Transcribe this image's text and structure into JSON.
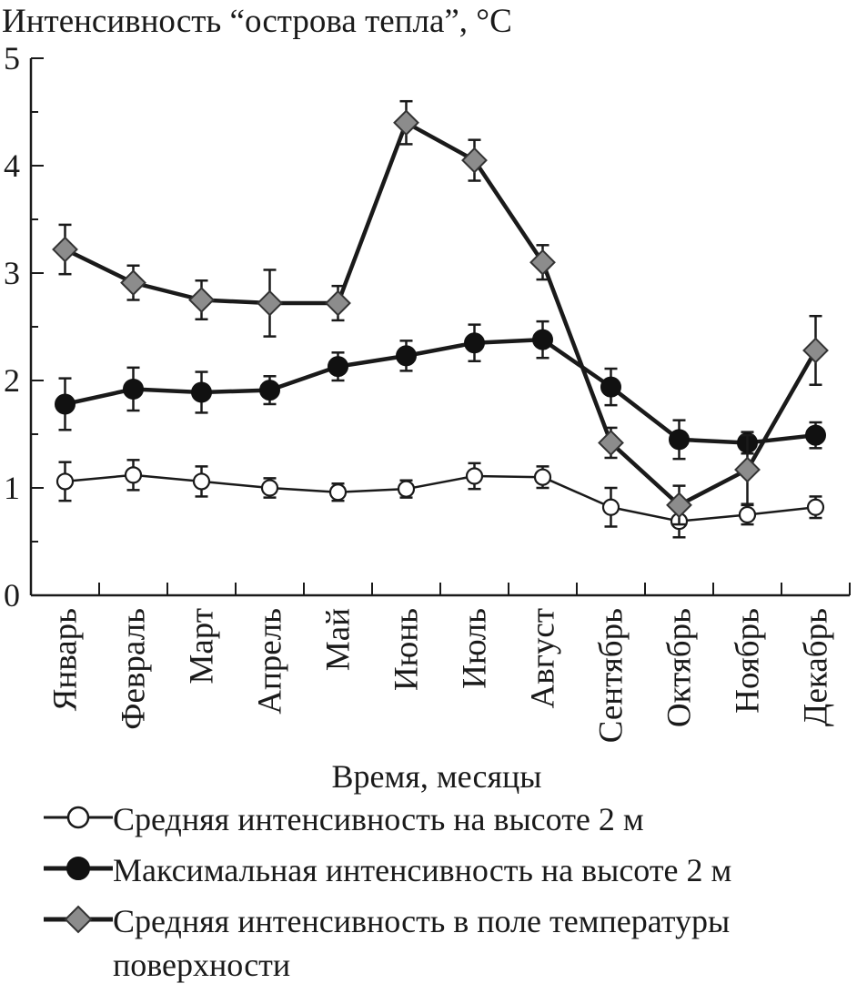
{
  "chart_data": {
    "type": "line",
    "title": "Интенсивность “острова тепла”, °C",
    "xlabel": "Время, месяцы",
    "ylabel": "Интенсивность “острова тепла”, °C",
    "ylim": [
      0,
      5
    ],
    "yticks": [
      "0",
      "1",
      "2",
      "3",
      "4",
      "5"
    ],
    "categories": [
      "Январь",
      "Февраль",
      "Март",
      "Апрель",
      "Май",
      "Июнь",
      "Июль",
      "Август",
      "Сентябрь",
      "Октябрь",
      "Ноябрь",
      "Декабрь"
    ],
    "series": [
      {
        "name": "Средняя интенсивность на высоте 2 м",
        "marker": "open-circle",
        "values": [
          1.06,
          1.12,
          1.06,
          1.0,
          0.96,
          0.99,
          1.11,
          1.1,
          0.82,
          0.69,
          0.75,
          0.82
        ],
        "errors": [
          0.18,
          0.14,
          0.14,
          0.09,
          0.08,
          0.08,
          0.12,
          0.1,
          0.18,
          0.15,
          0.09,
          0.1
        ]
      },
      {
        "name": "Максимальная интенсивность на высоте 2 м",
        "marker": "filled-circle",
        "values": [
          1.78,
          1.92,
          1.89,
          1.91,
          2.13,
          2.23,
          2.35,
          2.38,
          1.94,
          1.45,
          1.42,
          1.49
        ],
        "errors": [
          0.24,
          0.2,
          0.19,
          0.13,
          0.13,
          0.14,
          0.17,
          0.17,
          0.17,
          0.18,
          0.1,
          0.12
        ]
      },
      {
        "name": "Средняя интенсивность в поле температуры поверхности",
        "marker": "diamond",
        "values": [
          3.22,
          2.91,
          2.75,
          2.72,
          2.72,
          4.4,
          4.05,
          3.1,
          1.42,
          0.84,
          1.17,
          2.28
        ],
        "errors": [
          0.23,
          0.16,
          0.18,
          0.31,
          0.16,
          0.2,
          0.19,
          0.16,
          0.14,
          0.18,
          0.32,
          0.32
        ]
      }
    ],
    "colors": {
      "axis": "#1a1a1a",
      "line": "#1a1a1a",
      "diamond_fill": "#8c8c8c",
      "open_fill": "#ffffff",
      "filled": "#111111"
    }
  },
  "legend": {
    "items": [
      {
        "label": "Средняя интенсивность на высоте 2 м",
        "icon": "open-circle-line"
      },
      {
        "label": "Максимальная интенсивность на высоте 2 м",
        "icon": "filled-circle-line"
      },
      {
        "label": "Средняя интенсивность в поле температуры поверхности",
        "icon": "diamond-line"
      }
    ]
  }
}
